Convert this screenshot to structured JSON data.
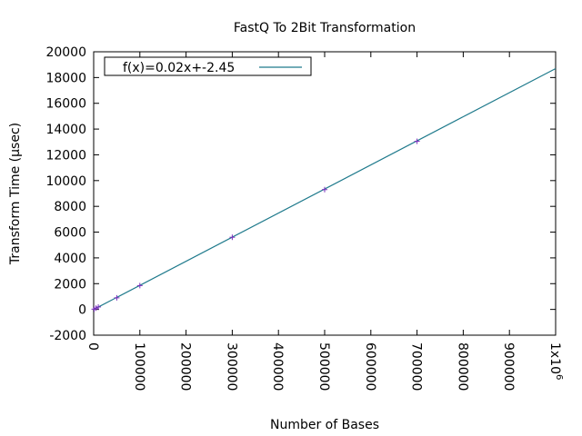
{
  "chart_data": {
    "type": "scatter",
    "title": "FastQ To 2Bit Transformation",
    "xlabel": "Number of Bases",
    "ylabel": "Transform Time (µsec)",
    "xlim": [
      0,
      1000000
    ],
    "ylim": [
      -2000,
      20000
    ],
    "x_ticks": [
      0,
      100000,
      200000,
      300000,
      400000,
      500000,
      600000,
      700000,
      800000,
      900000,
      1000000
    ],
    "x_tick_labels": [
      "0",
      "100000",
      "200000",
      "300000",
      "400000",
      "500000",
      "600000",
      "700000",
      "800000",
      "900000",
      "1x10"
    ],
    "x_last_tick_exponent": "6",
    "y_ticks": [
      -2000,
      0,
      2000,
      4000,
      6000,
      8000,
      10000,
      12000,
      14000,
      16000,
      18000,
      20000
    ],
    "y_tick_labels": [
      "-2000",
      "0",
      "2000",
      "4000",
      "6000",
      "8000",
      "10000",
      "12000",
      "14000",
      "16000",
      "18000",
      "20000"
    ],
    "grid": false,
    "legend_position": "top-left",
    "series": [
      {
        "kind": "points",
        "marker": "+",
        "color": "#7b2fbe",
        "x": [
          1000,
          5000,
          10000,
          50000,
          100000,
          300000,
          500000,
          700000
        ],
        "y": [
          20,
          100,
          190,
          900,
          1850,
          5600,
          9300,
          13050
        ]
      },
      {
        "kind": "fit-line",
        "name": "f(x)=0.02x+-2.45",
        "color": "#1f7a8c",
        "slope": 0.0187,
        "intercept": -2.45
      }
    ]
  }
}
